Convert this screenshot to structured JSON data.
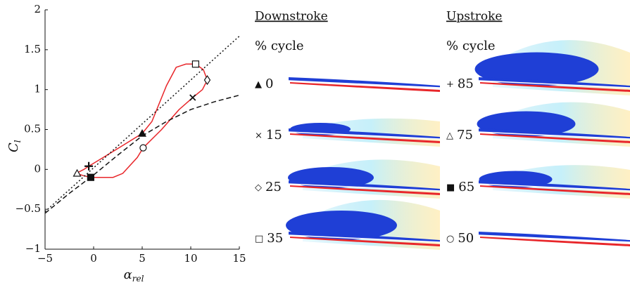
{
  "chart_data": {
    "type": "line",
    "ylabel_main": "C",
    "ylabel_sub": "l",
    "xlabel_main": "α",
    "xlabel_sub": "rel",
    "xlim": [
      -5,
      15
    ],
    "ylim": [
      -1,
      2
    ],
    "xticks": [
      {
        "value": -5,
        "label": "−5"
      },
      0,
      5,
      10,
      15
    ],
    "yticks": [
      {
        "value": -1,
        "label": "−1"
      },
      {
        "value": -0.5,
        "label": "−0.5"
      },
      0,
      0.5,
      1,
      1.5,
      2
    ],
    "series": [
      {
        "color": "#e8262a",
        "style": "solid",
        "x": [
          -1.8,
          -1,
          -0.5,
          1,
          3,
          5,
          6,
          7.5,
          8.5,
          9.5,
          10.5,
          11.3,
          11.7,
          11.2,
          10.2,
          8.8,
          7,
          5.1,
          4.5,
          3,
          2,
          0.5,
          -0.3,
          -1,
          -1.8
        ],
        "values": [
          -0.05,
          0,
          0.04,
          0.15,
          0.3,
          0.45,
          0.6,
          1.05,
          1.28,
          1.32,
          1.32,
          1.25,
          1.12,
          1.0,
          0.9,
          0.75,
          0.5,
          0.27,
          0.15,
          -0.05,
          -0.1,
          -0.1,
          -0.1,
          -0.08,
          -0.05
        ]
      },
      {
        "color": "#111111",
        "style": "dotted",
        "x": [
          -5,
          15
        ],
        "values": [
          -0.53,
          1.67
        ]
      },
      {
        "color": "#111111",
        "style": "dashed",
        "x": [
          -5,
          -2.5,
          0,
          2.5,
          5,
          7.5,
          10,
          12.5,
          15
        ],
        "values": [
          -0.55,
          -0.3,
          -0.07,
          0.18,
          0.42,
          0.6,
          0.75,
          0.85,
          0.93
        ]
      }
    ],
    "markers": [
      {
        "shape": "filled-triangle",
        "x": 5,
        "y": 0.45
      },
      {
        "shape": "cross",
        "x": 10.2,
        "y": 0.9
      },
      {
        "shape": "diamond",
        "x": 11.7,
        "y": 1.12
      },
      {
        "shape": "square",
        "x": 10.5,
        "y": 1.32
      },
      {
        "shape": "plus",
        "x": -0.5,
        "y": 0.04
      },
      {
        "shape": "triangle",
        "x": -1.7,
        "y": -0.05
      },
      {
        "shape": "filled-square",
        "x": -0.3,
        "y": -0.1
      },
      {
        "shape": "circle",
        "x": 5.1,
        "y": 0.27
      }
    ]
  },
  "panels": [
    {
      "title": "Downstroke",
      "subtitle": "% cycle",
      "rows": [
        {
          "symbol": "▲",
          "label": "0"
        },
        {
          "symbol": "×",
          "label": "15"
        },
        {
          "symbol": "◇",
          "label": "25"
        },
        {
          "symbol": "□",
          "label": "35"
        }
      ]
    },
    {
      "title": "Upstroke",
      "subtitle": "% cycle",
      "rows": [
        {
          "symbol": "+",
          "label": "85"
        },
        {
          "symbol": "△",
          "label": "75"
        },
        {
          "symbol": "■",
          "label": "65"
        },
        {
          "symbol": "○",
          "label": "50"
        }
      ]
    }
  ]
}
